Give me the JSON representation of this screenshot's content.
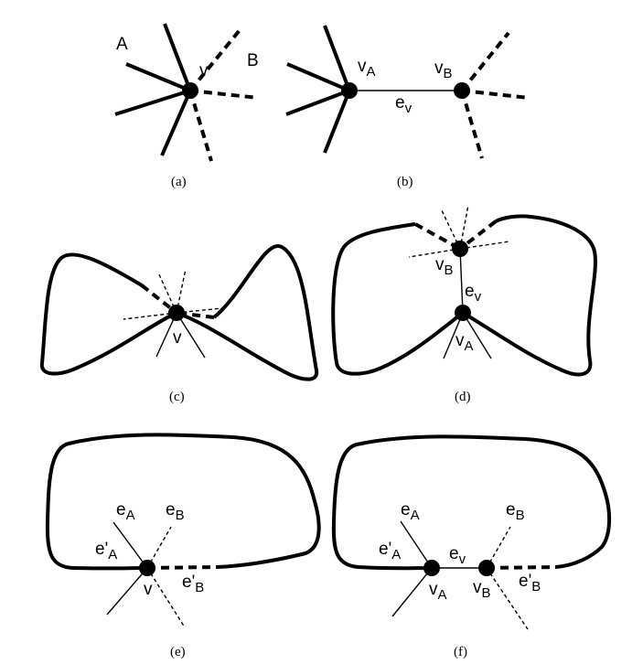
{
  "captions": {
    "a": "(a)",
    "b": "(b)",
    "c": "(c)",
    "d": "(d)",
    "e": "(e)",
    "f": "(f)"
  },
  "labels": {
    "a": {
      "A": "A",
      "B": "B",
      "v": "v"
    },
    "b": {
      "vA_main": "v",
      "vA_sub": "A",
      "vB_main": "v",
      "vB_sub": "B",
      "ev_main": "e",
      "ev_sub": "v"
    },
    "c": {
      "v": "v"
    },
    "d": {
      "vB_main": "v",
      "vB_sub": "B",
      "ev_main": "e",
      "ev_sub": "v",
      "vA_main": "v",
      "vA_sub": "A"
    },
    "e": {
      "eA_main": "e",
      "eA_sub": "A",
      "eB_main": "e",
      "eB_sub": "B",
      "epA_main": "e'",
      "epA_sub": "A",
      "epB_main": "e'",
      "epB_sub": "B",
      "v": "v"
    },
    "f": {
      "eA_main": "e",
      "eA_sub": "A",
      "eB_main": "e",
      "eB_sub": "B",
      "epA_main": "e'",
      "epA_sub": "A",
      "ev_main": "e",
      "ev_sub": "v",
      "vA_main": "v",
      "vA_sub": "A",
      "vB_main": "v",
      "vB_sub": "B",
      "epB_main": "e'",
      "epB_sub": "B"
    }
  }
}
